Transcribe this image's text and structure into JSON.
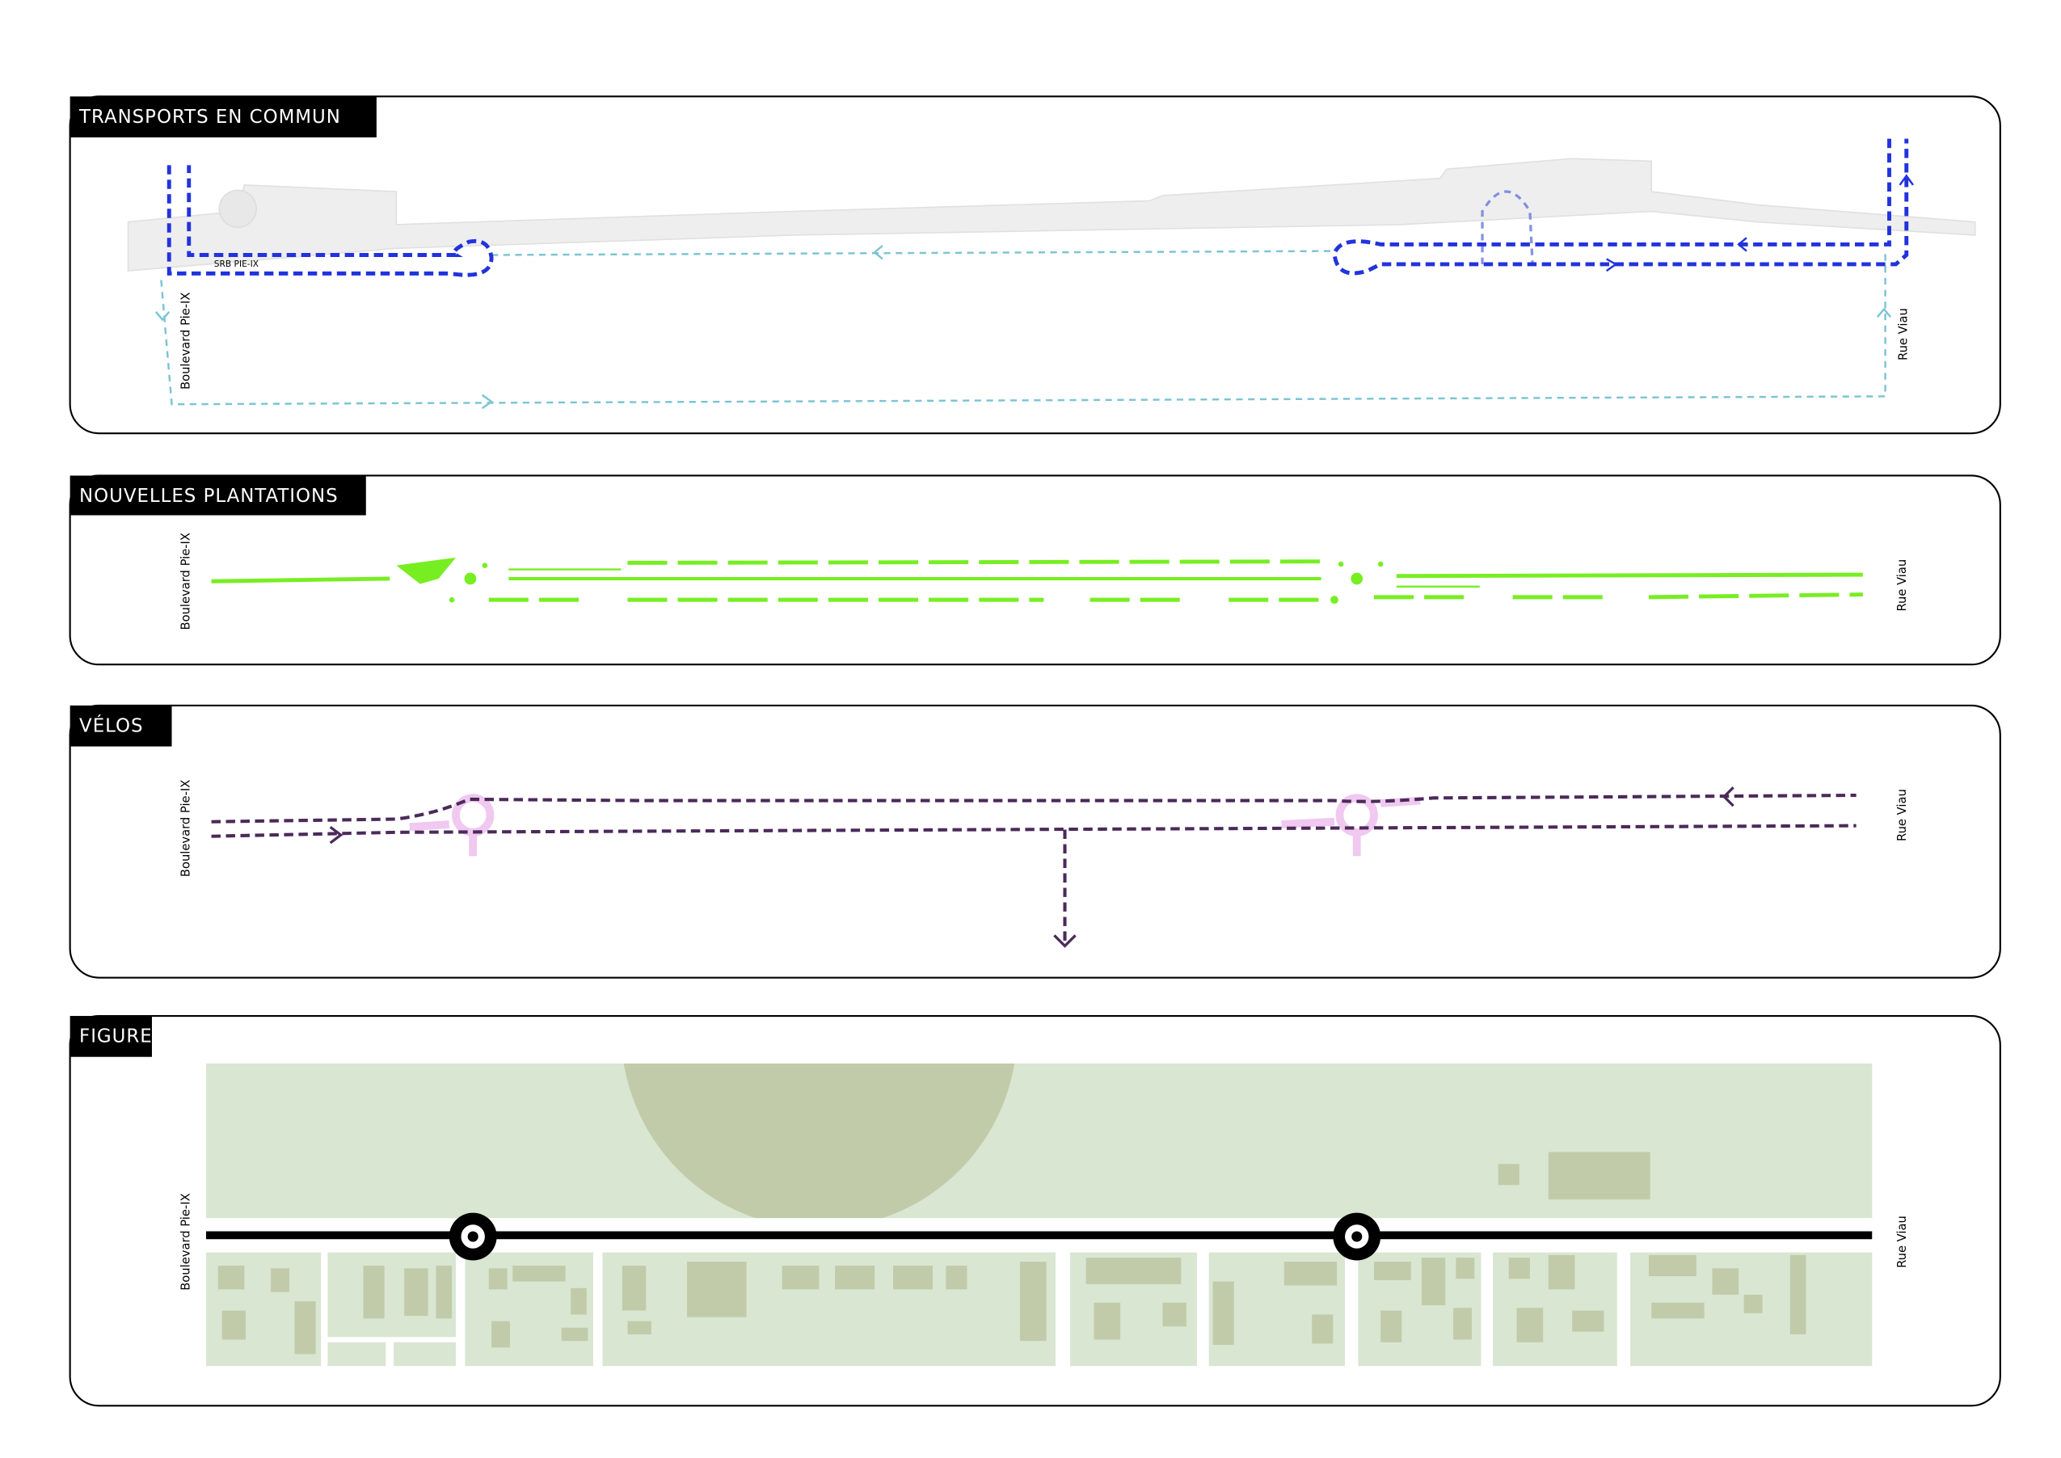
{
  "panels": [
    {
      "title": "TRANSPORTS EN COMMUN",
      "west_label": "Boulevard Pie-IX",
      "east_label": "Rue Viau",
      "route_label": "SRB PIE-IX"
    },
    {
      "title": "NOUVELLES PLANTATIONS",
      "west_label": "Boulevard Pie-IX",
      "east_label": "Rue Viau"
    },
    {
      "title": "VÉLOS",
      "west_label": "Boulevard Pie-IX",
      "east_label": "Rue Viau"
    },
    {
      "title": "FIGURE",
      "west_label": "Boulevard Pie-IX",
      "east_label": "Rue Viau"
    }
  ]
}
